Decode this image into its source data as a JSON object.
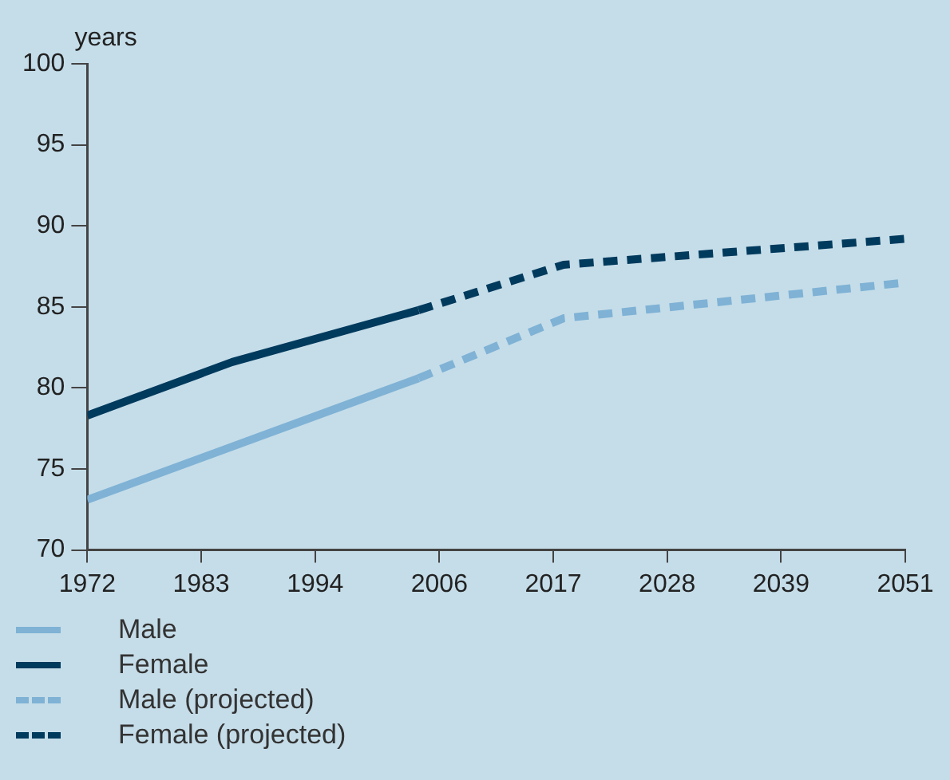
{
  "chart_data": {
    "type": "line",
    "ylabel": "years",
    "xlim": [
      1972,
      2051
    ],
    "xticks": [
      1972,
      1983,
      1994,
      2006,
      2017,
      2028,
      2039,
      2051
    ],
    "ylim": [
      70,
      100
    ],
    "yticks": [
      70,
      75,
      80,
      85,
      90,
      95,
      100
    ],
    "grid": false,
    "legend": "bottom left",
    "marker": "none",
    "series": [
      {
        "name": "Male",
        "color": "#7fb2d5",
        "line_style": "solid",
        "x": [
          1972,
          2004
        ],
        "values": [
          73.1,
          80.6
        ]
      },
      {
        "name": "Female",
        "color": "#003a5d",
        "line_style": "solid",
        "x": [
          1972,
          1986,
          2004
        ],
        "values": [
          78.3,
          81.6,
          84.8
        ]
      },
      {
        "name": "Male (projected)",
        "color": "#7fb2d5",
        "line_style": "dashed",
        "x": [
          2004,
          2018,
          2051
        ],
        "values": [
          80.6,
          84.3,
          86.5
        ]
      },
      {
        "name": "Female (projected)",
        "color": "#003a5d",
        "line_style": "dashed",
        "x": [
          2004,
          2018,
          2051
        ],
        "values": [
          84.8,
          87.6,
          89.2
        ]
      }
    ]
  }
}
